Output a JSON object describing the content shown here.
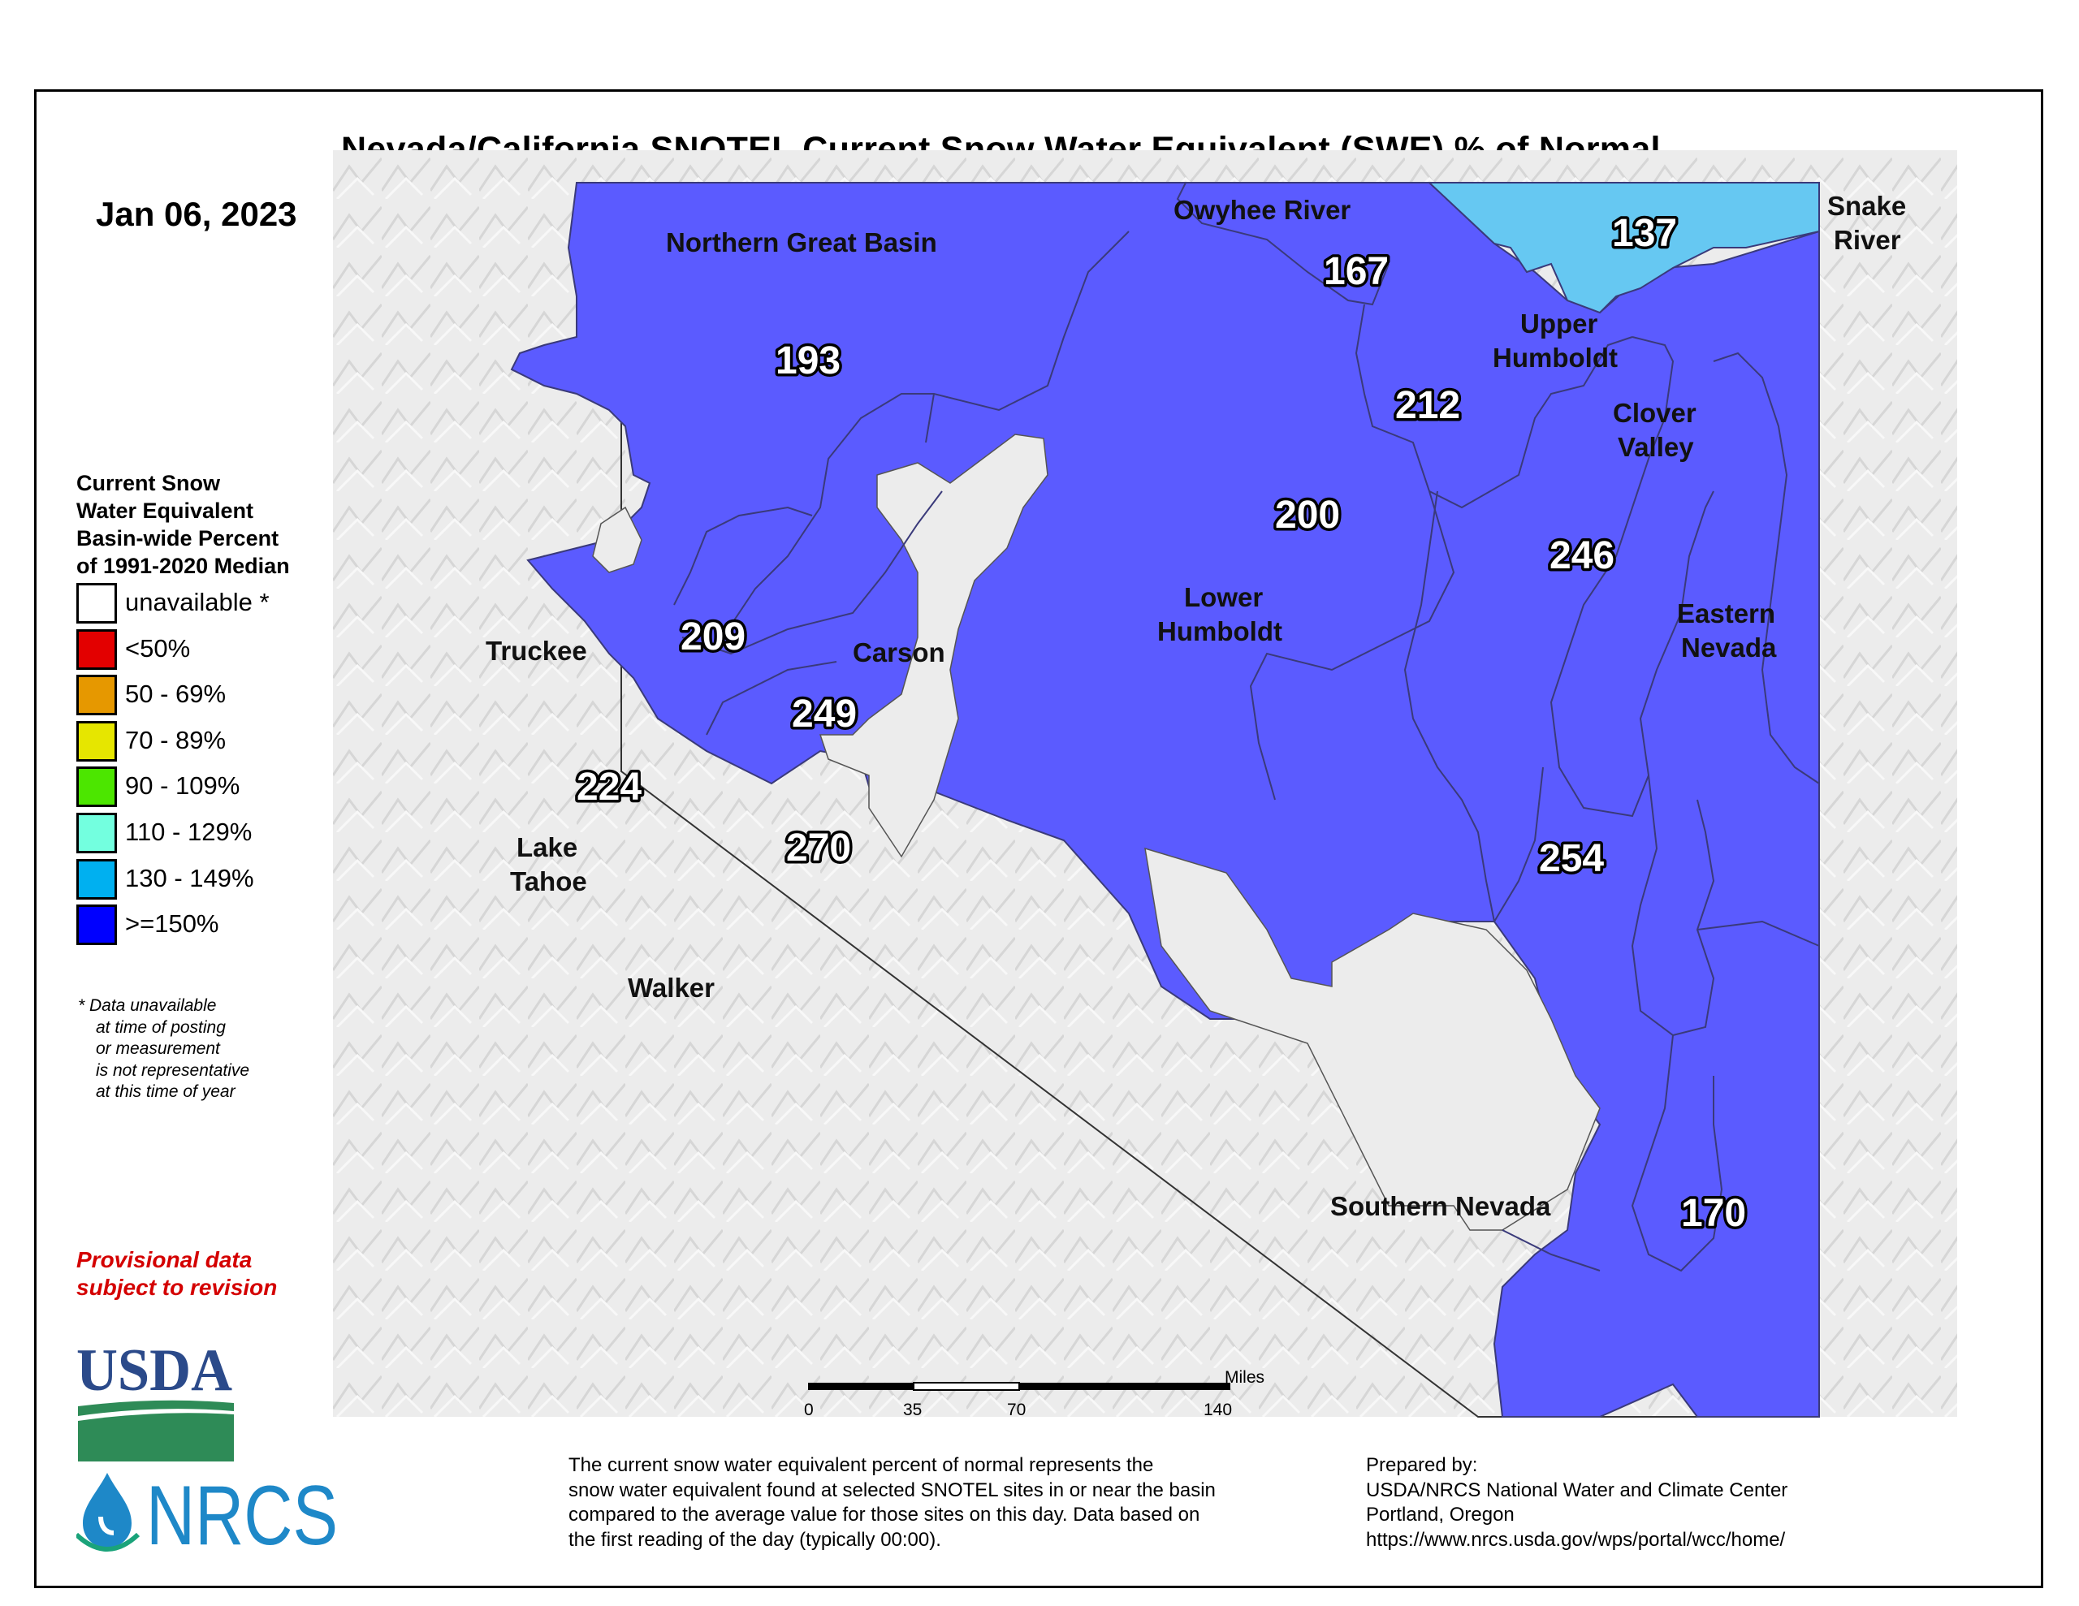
{
  "title": "Nevada/California SNOTEL Current Snow Water Equivalent (SWE) % of Normal",
  "date": "Jan 06, 2023",
  "legend": {
    "title_lines": [
      "Current Snow",
      "Water Equivalent",
      "Basin-wide Percent",
      "of 1991-2020 Median"
    ],
    "items": [
      {
        "label": "unavailable *",
        "color": "#ffffff"
      },
      {
        "label": "<50%",
        "color": "#e30000"
      },
      {
        "label": "50 - 69%",
        "color": "#e69800"
      },
      {
        "label": "70 - 89%",
        "color": "#e6e600"
      },
      {
        "label": "90 - 109%",
        "color": "#4ce600"
      },
      {
        "label": "110 - 129%",
        "color": "#73ffdf"
      },
      {
        "label": "130 - 149%",
        "color": "#00b0f0"
      },
      {
        "label": ">=150%",
        "color": "#0000ff"
      }
    ]
  },
  "footnote_lines": [
    "*  Data unavailable",
    "at time of posting",
    "or measurement",
    "is not representative",
    "at this time of year"
  ],
  "provisional_lines": [
    "Provisional data",
    "subject to revision"
  ],
  "logos": {
    "usda": "USDA",
    "nrcs": "NRCS"
  },
  "map": {
    "colors": {
      "above_150": "#5b5bff",
      "range_130_149": "#66c8f2",
      "border": "#3a3a7a",
      "background": "#ececec"
    },
    "basins": [
      {
        "name": "Northern Great Basin",
        "value": "193"
      },
      {
        "name": "Owyhee River",
        "value": "167"
      },
      {
        "name": "Snake River",
        "value": "137"
      },
      {
        "name": "Upper Humboldt",
        "value": "212"
      },
      {
        "name": "Clover Valley",
        "value": "246"
      },
      {
        "name": "Lower Humboldt",
        "value": "200"
      },
      {
        "name": "Truckee",
        "value": "209"
      },
      {
        "name": "Carson",
        "value": "249"
      },
      {
        "name": "Lake Tahoe",
        "value": "224"
      },
      {
        "name": "Walker",
        "value": "270"
      },
      {
        "name": "Eastern Nevada",
        "value": "254"
      },
      {
        "name": "Southern Nevada",
        "value": "170"
      }
    ],
    "scale": {
      "unit": "Miles",
      "ticks": [
        "0",
        "35",
        "70",
        "140"
      ]
    }
  },
  "description_lines": [
    "The current snow water equivalent percent of normal represents the",
    "snow water equivalent found at selected SNOTEL sites in or near the basin",
    "compared to the average value for those sites on this day. Data based on",
    "the first reading of the day (typically 00:00)."
  ],
  "prepared_lines": [
    "Prepared by:",
    "USDA/NRCS National Water and Climate Center",
    "Portland, Oregon",
    "https://www.nrcs.usda.gov/wps/portal/wcc/home/"
  ]
}
